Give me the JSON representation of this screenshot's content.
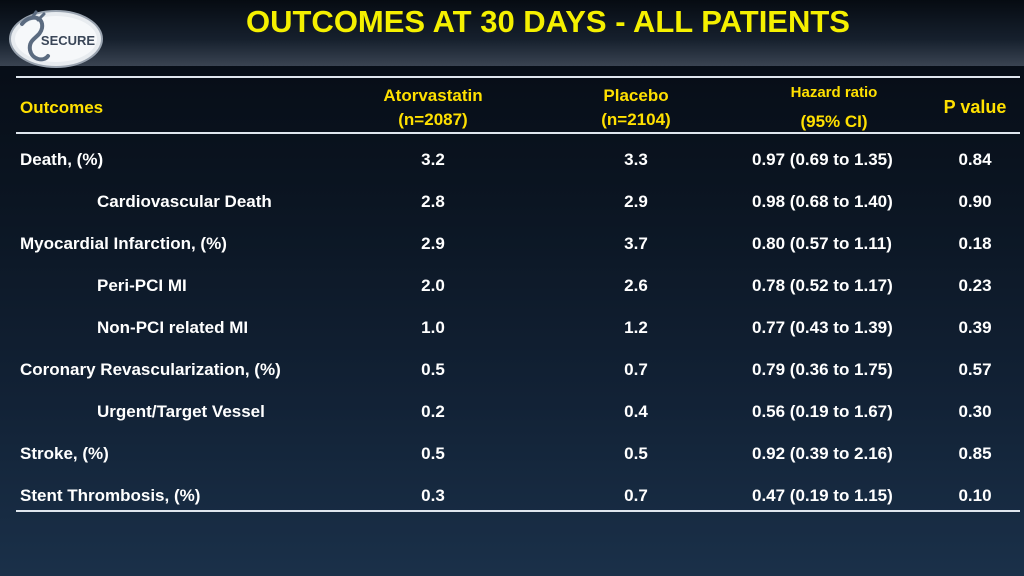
{
  "title": "OUTCOMES AT 30 DAYS - ALL PATIENTS",
  "logo_text": "SECURE",
  "headers": {
    "outcomes": "Outcomes",
    "atorvastatin": "Atorvastatin",
    "atorvastatin_n": "(n=2087)",
    "placebo": "Placebo",
    "placebo_n": "(n=2104)",
    "hazard_ratio": "Hazard ratio",
    "hazard_ci": "(95% CI)",
    "p_value": "P value"
  },
  "rows": [
    {
      "label": "Death, (%)",
      "indent": false,
      "atorvastatin": "3.2",
      "placebo": "3.3",
      "hr": "0.97 (0.69 to 1.35)",
      "p": "0.84"
    },
    {
      "label": "Cardiovascular Death",
      "indent": true,
      "atorvastatin": "2.8",
      "placebo": "2.9",
      "hr": "0.98 (0.68 to 1.40)",
      "p": "0.90"
    },
    {
      "label": "Myocardial Infarction, (%)",
      "indent": false,
      "atorvastatin": "2.9",
      "placebo": "3.7",
      "hr": "0.80 (0.57 to 1.11)",
      "p": "0.18"
    },
    {
      "label": "Peri-PCI MI",
      "indent": true,
      "atorvastatin": "2.0",
      "placebo": "2.6",
      "hr": "0.78 (0.52 to 1.17)",
      "p": "0.23"
    },
    {
      "label": "Non-PCI related MI",
      "indent": true,
      "atorvastatin": "1.0",
      "placebo": "1.2",
      "hr": "0.77 (0.43 to 1.39)",
      "p": "0.39"
    },
    {
      "label": "Coronary Revascularization, (%)",
      "indent": false,
      "atorvastatin": "0.5",
      "placebo": "0.7",
      "hr": "0.79 (0.36 to 1.75)",
      "p": "0.57"
    },
    {
      "label": "Urgent/Target Vessel",
      "indent": true,
      "atorvastatin": "0.2",
      "placebo": "0.4",
      "hr": "0.56 (0.19 to 1.67)",
      "p": "0.30"
    },
    {
      "label": "Stroke, (%)",
      "indent": false,
      "atorvastatin": "0.5",
      "placebo": "0.5",
      "hr": "0.92 (0.39 to 2.16)",
      "p": "0.85"
    },
    {
      "label": "Stent Thrombosis, (%)",
      "indent": false,
      "atorvastatin": "0.3",
      "placebo": "0.7",
      "hr": "0.47 (0.19 to 1.15)",
      "p": "0.10"
    }
  ],
  "colors": {
    "title": "#f5f000",
    "header": "#ffe000",
    "text": "#ffffff",
    "rule": "#dfe6ee"
  }
}
